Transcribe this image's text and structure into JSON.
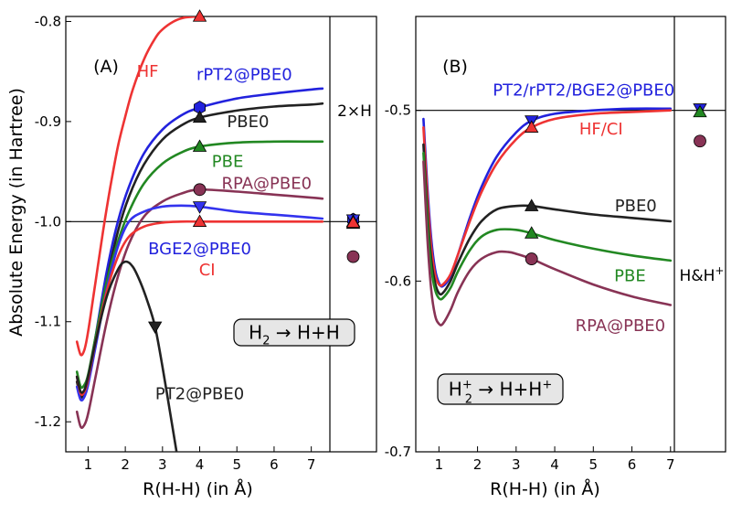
{
  "y_axis_title": "Absolute Energy (in Hartree)",
  "chart_data": [
    {
      "type": "line",
      "panel": "(A)",
      "reaction_label": {
        "lhs": "H",
        "lhs_sub": "2",
        "arrow": "→",
        "rhs": "H+H"
      },
      "xlabel": "R(H-H) (in Å)",
      "ylabel": "Absolute Energy (in Hartree)",
      "xlim": [
        0.4,
        7.5
      ],
      "ylim": [
        -1.23,
        -0.795
      ],
      "xticks": [
        1,
        2,
        3,
        4,
        5,
        6,
        7
      ],
      "xtick_labels": [
        "1",
        "2",
        "3",
        "4",
        "5",
        "6",
        "7"
      ],
      "yticks": [
        -1.2,
        -1.1,
        -1.0,
        -0.9,
        -0.8
      ],
      "ytick_labels": [
        "-1.2",
        "-1.1",
        "-1.0",
        "-0.9",
        "-0.8"
      ],
      "reference_line": -1.0,
      "separator_label": "2×H",
      "series": [
        {
          "name": "HF",
          "color": "#ee3333",
          "marker": "triangle-up",
          "marker_x": 4,
          "x": [
            0.7,
            0.8,
            0.9,
            1.0,
            1.2,
            1.4,
            1.6,
            1.8,
            2.0,
            2.2,
            2.5,
            2.8,
            3.0,
            3.3,
            3.6,
            4.0
          ],
          "y": [
            -1.12,
            -1.133,
            -1.128,
            -1.11,
            -1.06,
            -1.01,
            -0.965,
            -0.925,
            -0.895,
            -0.868,
            -0.838,
            -0.817,
            -0.808,
            -0.8,
            -0.796,
            -0.795
          ]
        },
        {
          "name": "rPT2@PBE0",
          "color": "#2222dd",
          "marker": "hexagon",
          "marker_x": 4,
          "x": [
            0.7,
            0.8,
            0.9,
            1.0,
            1.2,
            1.5,
            1.8,
            2.1,
            2.5,
            3.0,
            3.5,
            4.0,
            5.0,
            6.0,
            7.0,
            7.3
          ],
          "y": [
            -1.155,
            -1.172,
            -1.17,
            -1.16,
            -1.115,
            -1.05,
            -1.0,
            -0.965,
            -0.932,
            -0.908,
            -0.894,
            -0.886,
            -0.877,
            -0.872,
            -0.868,
            -0.867
          ]
        },
        {
          "name": "PBE0",
          "color": "#222222",
          "marker": "triangle-up",
          "marker_x": 4,
          "x": [
            0.7,
            0.8,
            0.9,
            1.0,
            1.2,
            1.5,
            1.8,
            2.1,
            2.5,
            3.0,
            3.5,
            4.0,
            5.0,
            6.0,
            7.0,
            7.3
          ],
          "y": [
            -1.16,
            -1.175,
            -1.172,
            -1.162,
            -1.12,
            -1.06,
            -1.01,
            -0.975,
            -0.943,
            -0.918,
            -0.904,
            -0.896,
            -0.889,
            -0.885,
            -0.883,
            -0.882
          ]
        },
        {
          "name": "PBE",
          "color": "#228822",
          "marker": "triangle-up",
          "marker_x": 4,
          "x": [
            0.7,
            0.8,
            0.9,
            1.0,
            1.2,
            1.5,
            1.8,
            2.1,
            2.5,
            3.0,
            3.5,
            4.0,
            5.0,
            6.0,
            7.0,
            7.3
          ],
          "y": [
            -1.15,
            -1.165,
            -1.163,
            -1.153,
            -1.115,
            -1.06,
            -1.02,
            -0.99,
            -0.962,
            -0.942,
            -0.931,
            -0.925,
            -0.921,
            -0.92,
            -0.92,
            -0.92
          ]
        },
        {
          "name": "RPA@PBE0",
          "color": "#883355",
          "marker": "circle",
          "marker_x": 4,
          "x": [
            0.7,
            0.8,
            0.9,
            1.0,
            1.2,
            1.5,
            1.8,
            2.1,
            2.5,
            3.0,
            3.5,
            4.0,
            5.0,
            6.0,
            7.0,
            7.3
          ],
          "y": [
            -1.19,
            -1.205,
            -1.203,
            -1.192,
            -1.155,
            -1.1,
            -1.055,
            -1.022,
            -0.995,
            -0.98,
            -0.972,
            -0.968,
            -0.97,
            -0.973,
            -0.976,
            -0.977
          ]
        },
        {
          "name": "BGE2@PBE0",
          "color": "#3333ee",
          "marker": "triangle-down",
          "marker_x": 4,
          "x": [
            0.7,
            0.8,
            0.9,
            1.0,
            1.2,
            1.5,
            1.8,
            2.1,
            2.5,
            3.0,
            3.5,
            4.0,
            5.0,
            6.0,
            7.0,
            7.3
          ],
          "y": [
            -1.165,
            -1.178,
            -1.175,
            -1.163,
            -1.125,
            -1.068,
            -1.025,
            -1.0,
            -0.99,
            -0.985,
            -0.984,
            -0.985,
            -0.99,
            -0.993,
            -0.996,
            -0.997
          ]
        },
        {
          "name": "CI",
          "color": "#ee3333",
          "marker": "triangle-up",
          "marker_x": 4,
          "x": [
            0.7,
            0.8,
            0.9,
            1.0,
            1.2,
            1.5,
            1.8,
            2.1,
            2.5,
            3.0,
            3.5,
            4.0,
            5.0,
            6.0,
            7.0,
            7.3
          ],
          "y": [
            -1.155,
            -1.172,
            -1.17,
            -1.158,
            -1.12,
            -1.07,
            -1.035,
            -1.015,
            -1.005,
            -1.001,
            -1.0,
            -1.0,
            -1.0,
            -1.0,
            -1.0,
            -1.0
          ]
        },
        {
          "name": "PT2@PBE0",
          "color": "#222222",
          "marker": "triangle-down",
          "marker_x": 2.8,
          "x": [
            0.7,
            0.8,
            0.9,
            1.0,
            1.2,
            1.5,
            1.8,
            2.0,
            2.2,
            2.4,
            2.6,
            2.8,
            3.0,
            3.2,
            3.4
          ],
          "y": [
            -1.155,
            -1.17,
            -1.168,
            -1.155,
            -1.12,
            -1.075,
            -1.048,
            -1.04,
            -1.045,
            -1.06,
            -1.08,
            -1.105,
            -1.145,
            -1.19,
            -1.235
          ]
        }
      ],
      "separated_atom_markers": [
        {
          "color": "#2222dd",
          "marker": "hexagon",
          "y": -0.998
        },
        {
          "color": "#3333ee",
          "marker": "triangle-down",
          "y": -0.998
        },
        {
          "color": "#228822",
          "marker": "triangle-up",
          "y": -1.0
        },
        {
          "color": "#222222",
          "marker": "triangle-up",
          "y": -1.002
        },
        {
          "color": "#ee3333",
          "marker": "triangle-up",
          "y": -1.001
        },
        {
          "color": "#883355",
          "marker": "circle",
          "y": -1.035
        }
      ],
      "series_labels": [
        {
          "text": "HF",
          "color": "#ee3333",
          "x": 2.6,
          "y": -0.85
        },
        {
          "text": "rPT2@PBE0",
          "color": "#2222dd",
          "x": 5.2,
          "y": -0.853
        },
        {
          "text": "PBE0",
          "color": "#222222",
          "x": 5.3,
          "y": -0.9
        },
        {
          "text": "PBE",
          "color": "#228822",
          "x": 4.75,
          "y": -0.94
        },
        {
          "text": "RPA@PBE0",
          "color": "#883355",
          "x": 5.8,
          "y": -0.962
        },
        {
          "text": "BGE2@PBE0",
          "color": "#2222dd",
          "x": 4.0,
          "y": -1.027
        },
        {
          "text": "CI",
          "color": "#ee3333",
          "x": 4.2,
          "y": -1.048
        },
        {
          "text": "PT2@PBE0",
          "color": "#222222",
          "x": 4.0,
          "y": -1.172
        }
      ]
    },
    {
      "type": "line",
      "panel": "(B)",
      "reaction_label": {
        "lhs": "H",
        "lhs_sub": "2",
        "lhs_sup": "+",
        "arrow": "→",
        "rhs": "H+H",
        "rhs_sup": "+"
      },
      "xlabel": "R(H-H) (in Å)",
      "ylabel": "",
      "xlim": [
        0.4,
        7.1
      ],
      "ylim": [
        -0.7,
        -0.445
      ],
      "xticks": [
        1,
        2,
        3,
        4,
        5,
        6,
        7
      ],
      "xtick_labels": [
        "1",
        "2",
        "3",
        "4",
        "5",
        "6",
        "7"
      ],
      "yticks": [
        -0.7,
        -0.6,
        -0.5
      ],
      "ytick_labels": [
        "-0.7",
        "-0.6",
        "-0.5"
      ],
      "reference_line": -0.5,
      "separator_label": "H&H",
      "separator_label_sup": "+",
      "series": [
        {
          "name": "PT2/rPT2/BGE2@PBE0",
          "color": "#2222dd",
          "marker": "triangle-down",
          "marker_x": 3.4,
          "x": [
            0.6,
            0.7,
            0.8,
            0.9,
            1.0,
            1.1,
            1.3,
            1.5,
            1.8,
            2.1,
            2.5,
            3.0,
            3.4,
            4.0,
            5.0,
            6.0,
            7.0
          ],
          "y": [
            -0.505,
            -0.545,
            -0.575,
            -0.593,
            -0.601,
            -0.603,
            -0.597,
            -0.584,
            -0.563,
            -0.545,
            -0.527,
            -0.513,
            -0.506,
            -0.502,
            -0.5,
            -0.499,
            -0.499
          ]
        },
        {
          "name": "HF/CI",
          "color": "#ee3333",
          "marker": "triangle-up",
          "marker_x": 3.4,
          "x": [
            0.6,
            0.7,
            0.8,
            0.9,
            1.0,
            1.1,
            1.3,
            1.5,
            1.8,
            2.1,
            2.5,
            3.0,
            3.4,
            4.0,
            5.0,
            6.0,
            7.0
          ],
          "y": [
            -0.51,
            -0.55,
            -0.58,
            -0.596,
            -0.602,
            -0.602,
            -0.596,
            -0.584,
            -0.565,
            -0.548,
            -0.531,
            -0.517,
            -0.51,
            -0.505,
            -0.502,
            -0.501,
            -0.5
          ]
        },
        {
          "name": "PBE0",
          "color": "#222222",
          "marker": "triangle-up",
          "marker_x": 3.4,
          "x": [
            0.6,
            0.7,
            0.8,
            0.9,
            1.0,
            1.1,
            1.3,
            1.5,
            1.8,
            2.1,
            2.5,
            3.0,
            3.4,
            4.0,
            5.0,
            6.0,
            7.0
          ],
          "y": [
            -0.52,
            -0.56,
            -0.587,
            -0.601,
            -0.607,
            -0.607,
            -0.6,
            -0.589,
            -0.575,
            -0.565,
            -0.558,
            -0.556,
            -0.556,
            -0.558,
            -0.561,
            -0.563,
            -0.565
          ]
        },
        {
          "name": "PBE",
          "color": "#228822",
          "marker": "triangle-up",
          "marker_x": 3.4,
          "x": [
            0.6,
            0.7,
            0.8,
            0.9,
            1.0,
            1.1,
            1.3,
            1.5,
            1.8,
            2.1,
            2.5,
            3.0,
            3.4,
            4.0,
            5.0,
            6.0,
            7.0
          ],
          "y": [
            -0.525,
            -0.565,
            -0.592,
            -0.605,
            -0.61,
            -0.61,
            -0.604,
            -0.594,
            -0.582,
            -0.574,
            -0.57,
            -0.57,
            -0.572,
            -0.576,
            -0.581,
            -0.585,
            -0.588
          ]
        },
        {
          "name": "RPA@PBE0",
          "color": "#883355",
          "marker": "circle",
          "marker_x": 3.4,
          "x": [
            0.6,
            0.7,
            0.8,
            0.9,
            1.0,
            1.1,
            1.3,
            1.5,
            1.8,
            2.1,
            2.5,
            2.8,
            3.0,
            3.4,
            4.0,
            5.0,
            6.0,
            7.0
          ],
          "y": [
            -0.53,
            -0.575,
            -0.605,
            -0.62,
            -0.625,
            -0.625,
            -0.617,
            -0.606,
            -0.594,
            -0.587,
            -0.583,
            -0.583,
            -0.584,
            -0.587,
            -0.593,
            -0.602,
            -0.609,
            -0.614
          ]
        }
      ],
      "separated_atom_markers": [
        {
          "color": "#2222dd",
          "marker": "triangle-down",
          "y": -0.499
        },
        {
          "color": "#228822",
          "marker": "triangle-up",
          "y": -0.501
        },
        {
          "color": "#883355",
          "marker": "circle",
          "y": -0.518
        }
      ],
      "series_labels": [
        {
          "text": "PT2/rPT2/BGE2@PBE0",
          "color": "#2222dd",
          "x": 4.75,
          "y": -0.488
        },
        {
          "text": "HF/CI",
          "color": "#ee3333",
          "x": 5.2,
          "y": -0.511
        },
        {
          "text": "PBE0",
          "color": "#222222",
          "x": 6.1,
          "y": -0.556
        },
        {
          "text": "PBE",
          "color": "#228822",
          "x": 5.95,
          "y": -0.597
        },
        {
          "text": "RPA@PBE0",
          "color": "#883355",
          "x": 5.7,
          "y": -0.626
        }
      ]
    }
  ]
}
